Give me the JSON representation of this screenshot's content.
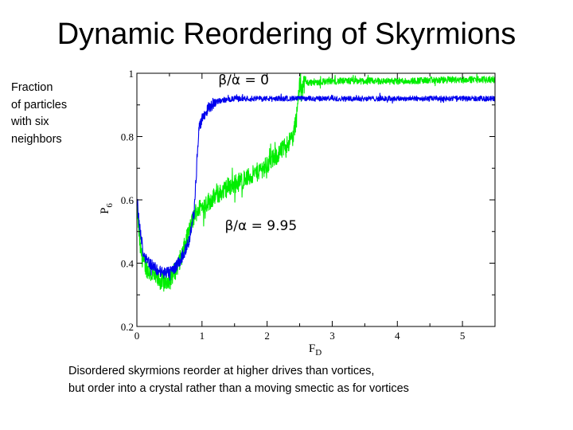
{
  "slide": {
    "title": "Dynamic Reordering of Skyrmions",
    "side_label": [
      "Fraction",
      "of particles",
      "with six",
      "neighbors"
    ],
    "caption": [
      "Disordered skyrmions reorder at higher drives than vortices,",
      "but order into a crystal rather than a moving smectic as for vortices"
    ]
  },
  "chart_data": {
    "type": "line",
    "title": "",
    "xlabel_main": "F",
    "xlabel_sub": "D",
    "ylabel_main": "P",
    "ylabel_sub": "6",
    "xlim": [
      0,
      5.5
    ],
    "ylim": [
      0.2,
      1.0
    ],
    "xticks": [
      0,
      1,
      2,
      3,
      4,
      5
    ],
    "xtick_labels": [
      "0",
      "1",
      "2",
      "3",
      "4",
      "5"
    ],
    "yticks": [
      0.2,
      0.4,
      0.6,
      0.8,
      1.0
    ],
    "ytick_labels": [
      "0.2",
      "0.4",
      "0.6",
      "0.8",
      "1"
    ],
    "series": [
      {
        "name": "β/α = 9.95",
        "color": "#00ee00",
        "noise": 0.03,
        "x": [
          0,
          0.05,
          0.1,
          0.2,
          0.3,
          0.4,
          0.5,
          0.6,
          0.7,
          0.8,
          0.9,
          1.0,
          1.2,
          1.4,
          1.6,
          1.8,
          2.0,
          2.2,
          2.4,
          2.45,
          2.5,
          2.6,
          3.0,
          4.0,
          5.0,
          5.5
        ],
        "y": [
          0.58,
          0.45,
          0.4,
          0.37,
          0.35,
          0.34,
          0.35,
          0.38,
          0.43,
          0.5,
          0.56,
          0.58,
          0.61,
          0.64,
          0.66,
          0.68,
          0.71,
          0.75,
          0.8,
          0.86,
          0.96,
          0.97,
          0.975,
          0.975,
          0.98,
          0.98
        ]
      },
      {
        "name": "β/α = 0",
        "color": "#0000ee",
        "noise": 0.018,
        "x": [
          0,
          0.05,
          0.1,
          0.2,
          0.3,
          0.4,
          0.5,
          0.6,
          0.7,
          0.8,
          0.88,
          0.95,
          1.0,
          1.1,
          1.2,
          1.5,
          2.0,
          3.0,
          4.0,
          5.0,
          5.5
        ],
        "y": [
          0.6,
          0.5,
          0.43,
          0.4,
          0.38,
          0.37,
          0.37,
          0.39,
          0.42,
          0.47,
          0.56,
          0.82,
          0.86,
          0.89,
          0.91,
          0.92,
          0.92,
          0.92,
          0.92,
          0.92,
          0.92
        ]
      }
    ],
    "annotations": [
      {
        "text": "β/α = 0",
        "x": 1.25,
        "y": 0.965
      },
      {
        "text": "β/α = 9.95",
        "x": 1.35,
        "y": 0.505
      }
    ]
  }
}
